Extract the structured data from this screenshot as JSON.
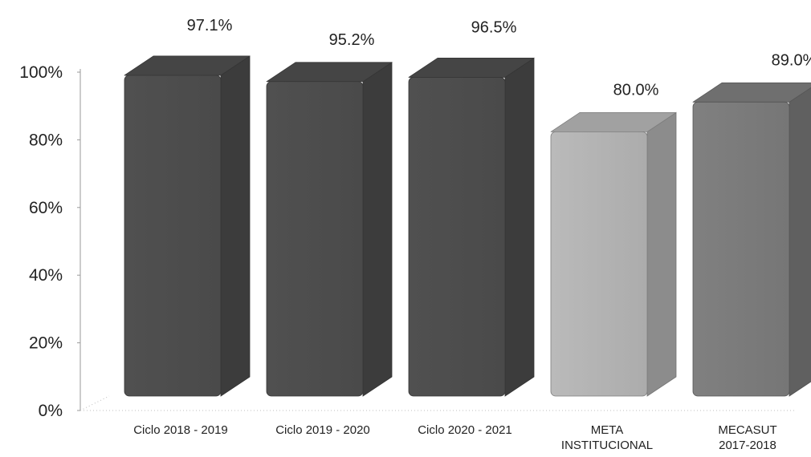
{
  "chart_data": {
    "type": "bar",
    "title": "",
    "xlabel": "",
    "ylabel": "",
    "ylim": [
      0,
      100
    ],
    "yticks": [
      "0%",
      "20%",
      "40%",
      "60%",
      "80%",
      "100%"
    ],
    "grid": false,
    "three_d": true,
    "categories": [
      [
        "Ciclo 2018 - 2019"
      ],
      [
        "Ciclo 2019 - 2020"
      ],
      [
        "Ciclo 2020 - 2021"
      ],
      [
        "META",
        "INSTITUCIONAL"
      ],
      [
        "MECASUT",
        "2017-2018"
      ]
    ],
    "values": [
      97.1,
      95.2,
      96.5,
      80.0,
      89.0
    ],
    "data_labels": [
      "97.1%",
      "95.2%",
      "96.5%",
      "80.0%",
      "89.0%"
    ],
    "colors": [
      "#4d4d4d",
      "#4d4d4d",
      "#4d4d4d",
      "#b3b3b3",
      "#7b7b7b"
    ]
  }
}
